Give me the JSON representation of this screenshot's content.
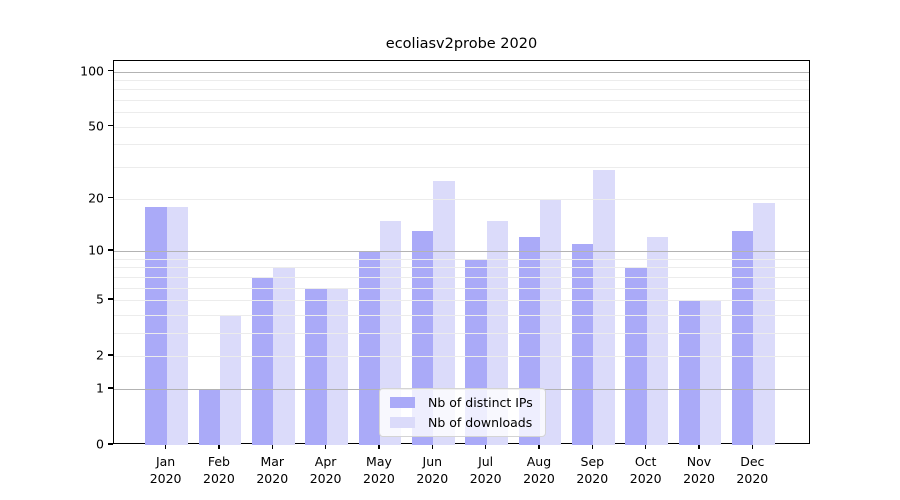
{
  "chart_data": {
    "type": "bar",
    "title": "ecoliasv2probe 2020",
    "categories": [
      "Jan",
      "Feb",
      "Mar",
      "Apr",
      "May",
      "Jun",
      "Jul",
      "Aug",
      "Sep",
      "Oct",
      "Nov",
      "Dec"
    ],
    "category_year": "2020",
    "series": [
      {
        "name": "Nb of distinct IPs",
        "color": "#aaaaf8",
        "values": [
          18,
          1,
          7,
          6,
          10,
          13,
          9,
          12,
          11,
          8,
          5,
          13
        ]
      },
      {
        "name": "Nb of downloads",
        "color": "#dbdbfa",
        "values": [
          18,
          4,
          8,
          6,
          15,
          25,
          15,
          20,
          29,
          12,
          5,
          19
        ]
      }
    ],
    "y_axis": {
      "scale": "log1p",
      "tick_values": [
        0,
        1,
        2,
        5,
        10,
        20,
        50,
        100
      ],
      "major_gridlines": [
        1,
        10,
        100
      ],
      "minor_gridlines": [
        2,
        3,
        4,
        5,
        6,
        7,
        8,
        9,
        20,
        30,
        40,
        50,
        60,
        70,
        80,
        90
      ],
      "ylim": [
        0,
        114
      ]
    },
    "legend": {
      "position": "lower center",
      "entries": [
        "Nb of distinct IPs",
        "Nb of downloads"
      ]
    },
    "colors": {
      "major_grid": "#b3b3b3",
      "minor_grid": "#ececec",
      "axis": "#000000",
      "background": "#ffffff"
    }
  }
}
